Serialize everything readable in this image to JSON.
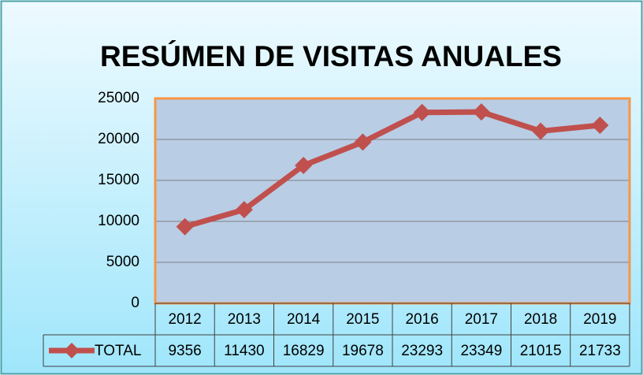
{
  "chart_data": {
    "type": "line",
    "title": "RESÚMEN DE VISITAS ANUALES",
    "categories": [
      "2012",
      "2013",
      "2014",
      "2015",
      "2016",
      "2017",
      "2018",
      "2019"
    ],
    "series": [
      {
        "name": "TOTAL",
        "color": "#c0504d",
        "values": [
          9356,
          11430,
          16829,
          19678,
          23293,
          23349,
          21015,
          21733
        ]
      }
    ],
    "ylim": [
      0,
      25000
    ],
    "yticks": [
      0,
      5000,
      10000,
      15000,
      20000,
      25000
    ],
    "grid": true,
    "data_table": true
  }
}
